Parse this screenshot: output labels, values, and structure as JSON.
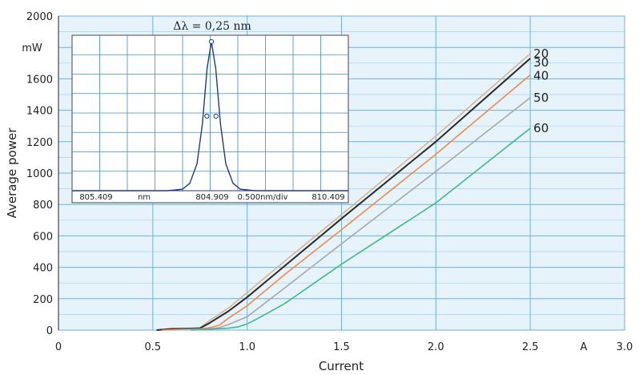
{
  "chart_data": [
    {
      "type": "line",
      "xlabel": "Current",
      "ylabel": "Average power",
      "x_unit_label": "A",
      "y_unit_label": "mW",
      "xlim": [
        0,
        3.0
      ],
      "ylim": [
        0,
        2000
      ],
      "x_ticks": [
        "0",
        "0.5",
        "1.0",
        "1.5",
        "2.0",
        "2.5",
        "3.0"
      ],
      "y_ticks": [
        "0",
        "200",
        "400",
        "600",
        "800",
        "1000",
        "1200",
        "1400",
        "1600",
        "",
        "2000"
      ],
      "grid": true,
      "series": [
        {
          "name": "20",
          "color": "#d9b48f",
          "x": [
            0.52,
            0.6,
            0.7,
            0.75,
            0.8,
            0.9,
            1.0,
            1.2,
            1.5,
            2.0,
            2.5
          ],
          "values": [
            0,
            8,
            10,
            15,
            60,
            140,
            240,
            440,
            735,
            1235,
            1760
          ]
        },
        {
          "name": "30",
          "color": "#2b2b2b",
          "x": [
            0.52,
            0.6,
            0.7,
            0.75,
            0.8,
            0.9,
            1.0,
            1.2,
            1.5,
            2.0,
            2.5
          ],
          "values": [
            0,
            8,
            10,
            12,
            45,
            120,
            210,
            410,
            710,
            1200,
            1730
          ]
        },
        {
          "name": "40",
          "color": "#f4884a",
          "x": [
            0.55,
            0.65,
            0.75,
            0.8,
            0.85,
            0.9,
            1.0,
            1.2,
            1.5,
            2.0,
            2.5
          ],
          "values": [
            0,
            5,
            8,
            15,
            30,
            75,
            155,
            355,
            640,
            1120,
            1625
          ]
        },
        {
          "name": "50",
          "color": "#a8a8a8",
          "x": [
            0.6,
            0.7,
            0.8,
            0.85,
            0.9,
            1.0,
            1.2,
            1.5,
            2.0,
            2.5
          ],
          "values": [
            0,
            5,
            8,
            15,
            35,
            85,
            270,
            550,
            1010,
            1480
          ]
        },
        {
          "name": "60",
          "color": "#3dbb8a",
          "x": [
            0.7,
            0.8,
            0.9,
            0.95,
            1.0,
            1.05,
            1.2,
            1.5,
            2.0,
            2.5
          ],
          "values": [
            0,
            5,
            12,
            20,
            40,
            70,
            170,
            420,
            810,
            1285
          ]
        }
      ]
    },
    {
      "type": "line",
      "title": "Δλ = 0,25 nm",
      "x_tick_labels": [
        "805.409",
        "nm",
        "804.909",
        "0.500nm/div",
        "810.409"
      ],
      "grid": true,
      "series": [
        {
          "color": "#1f3a8a",
          "x": [
            -5,
            -1.2,
            -0.8,
            -0.6,
            -0.4,
            -0.25,
            -0.12,
            0,
            0.12,
            0.25,
            0.4,
            0.6,
            0.8,
            1.2,
            5
          ],
          "values": [
            0,
            0.0,
            0.01,
            0.05,
            0.18,
            0.45,
            0.82,
            1.0,
            0.82,
            0.45,
            0.18,
            0.05,
            0.01,
            0.0,
            0
          ]
        }
      ],
      "markers": [
        {
          "x": 0,
          "y": 1.0
        },
        {
          "x": -0.125,
          "y": 0.5
        },
        {
          "x": 0.125,
          "y": 0.5
        }
      ]
    }
  ]
}
